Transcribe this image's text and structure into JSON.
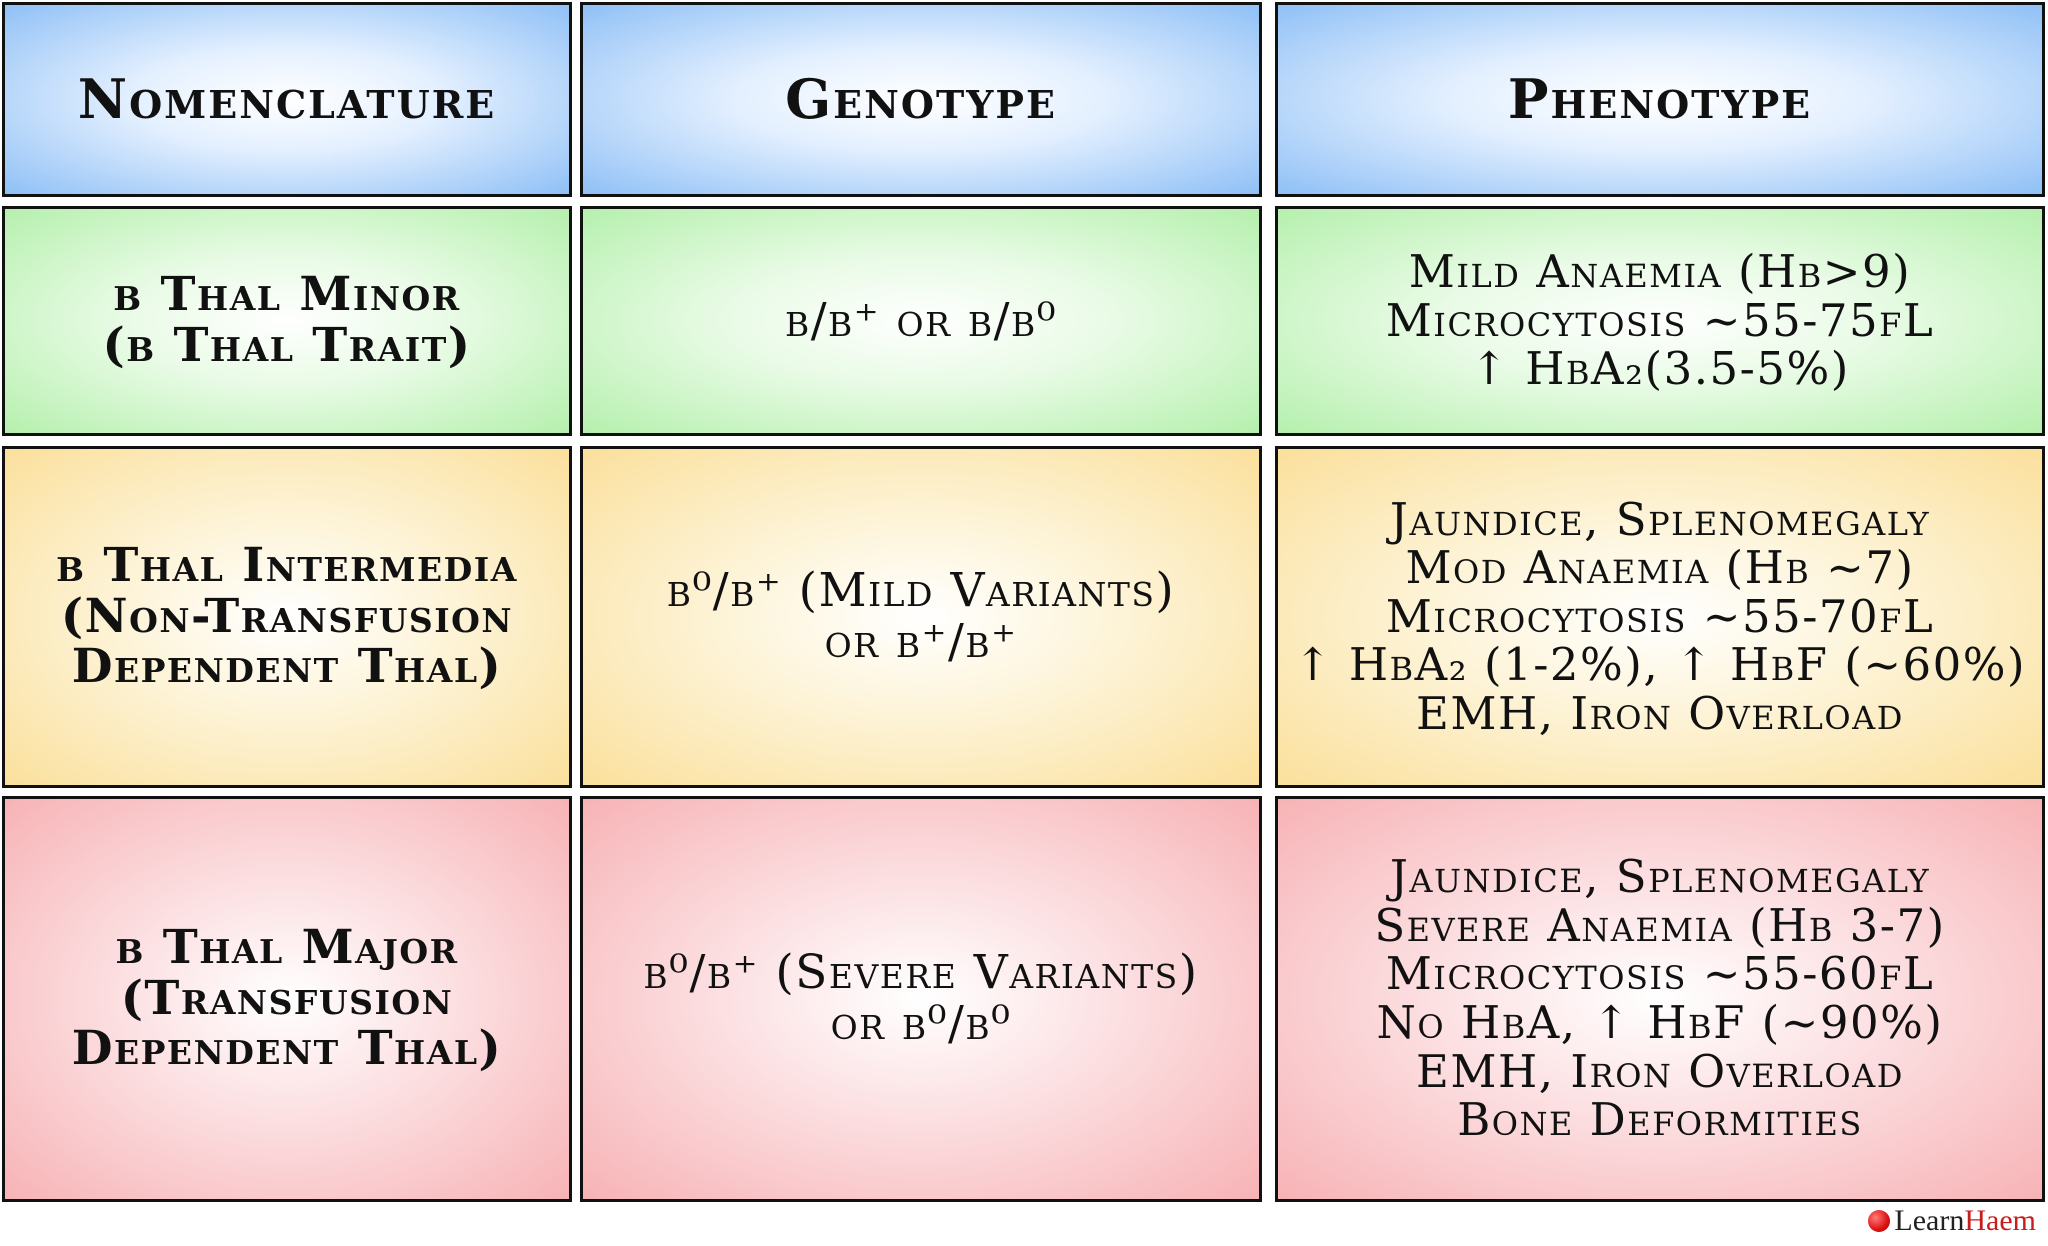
{
  "headers": [
    "Nomenclature",
    "Genotype",
    "Phenotype"
  ],
  "rows": [
    {
      "color": "#b5f0ad",
      "nomenclature": [
        "β Thal Minor",
        "(β Thal Trait)"
      ],
      "genotype": [
        "β/β⁺ or β/β⁰"
      ],
      "phenotype": [
        "Mild Anaemia (Hb>9)",
        "Microcytosis ~55-75fL",
        "↑ HbA₂(3.5-5%)"
      ]
    },
    {
      "color": "#fbe09c",
      "nomenclature": [
        "β Thal Intermedia",
        "(Non-Transfusion",
        "Dependent Thal)"
      ],
      "genotype": [
        "β⁰/β⁺ (Mild Variants)",
        "or β⁺/β⁺"
      ],
      "phenotype": [
        "Jaundice, Splenomegaly",
        "Mod Anaemia (Hb ~7)",
        "Microcytosis ~55-70fL",
        "↑ HbA₂ (1-2%), ↑ HbF (~60%)",
        "EMH, Iron Overload"
      ]
    },
    {
      "color": "#f7b3b6",
      "nomenclature": [
        "β Thal Major",
        "(Transfusion",
        "Dependent Thal)"
      ],
      "genotype": [
        "β⁰/β⁺ (Severe Variants)",
        "or β⁰/β⁰"
      ],
      "phenotype": [
        "Jaundice, Splenomegaly",
        "Severe Anaemia (Hb 3-7)",
        "Microcytosis ~55-60fL",
        "No HbA, ↑ HbF (~90%)",
        "EMH, Iron Overload",
        "Bone Deformities"
      ]
    }
  ],
  "logo": {
    "part1": "Learn",
    "part2": "Haem"
  }
}
